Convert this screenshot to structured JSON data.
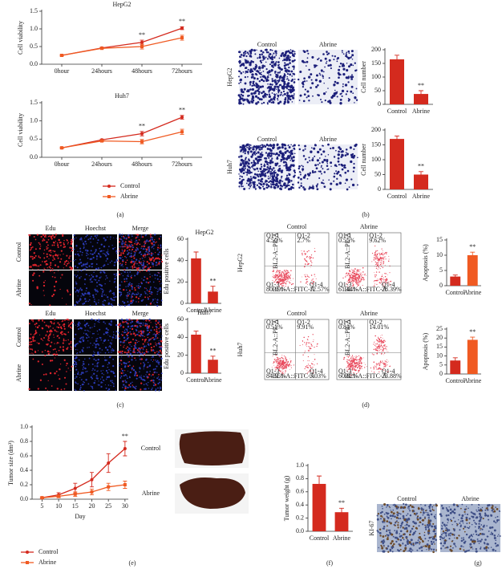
{
  "chart_data": [
    {
      "type": "line",
      "title": "HepG2",
      "y_label": "Cell viability",
      "categories": [
        "0hour",
        "24hours",
        "48hours",
        "72hours"
      ],
      "ylim": [
        0,
        1.5
      ],
      "yticks": [
        {
          "value": 0,
          "label": "0.0"
        },
        0.5,
        {
          "value": 1,
          "label": "1.0"
        },
        1.5
      ],
      "series": [
        {
          "name": "Control",
          "color": "#d42a1e",
          "values": [
            0.25,
            0.46,
            0.62,
            1.02
          ],
          "errors": [
            0.02,
            0.02,
            0.06,
            0.04
          ]
        },
        {
          "name": "Abrine",
          "color": "#f05a22",
          "values": [
            0.25,
            0.45,
            0.5,
            0.75
          ],
          "errors": [
            0.02,
            0.02,
            0.07,
            0.07
          ]
        }
      ],
      "annotations": [
        {
          "text": "**",
          "x": "48hours"
        },
        {
          "text": "**",
          "x": "72hours"
        }
      ]
    },
    {
      "type": "line",
      "title": "Huh7",
      "y_label": "Cell viability",
      "categories": [
        "0hour",
        "24hours",
        "48hours",
        "72hours"
      ],
      "ylim": [
        0,
        1.5
      ],
      "yticks": [
        {
          "value": 0,
          "label": "0.0"
        },
        0.5,
        {
          "value": 1,
          "label": "1.0"
        },
        1.5
      ],
      "legend": true,
      "series": [
        {
          "name": "Control",
          "color": "#d42a1e",
          "values": [
            0.26,
            0.48,
            0.65,
            1.1
          ],
          "errors": [
            0.02,
            0.02,
            0.06,
            0.05
          ]
        },
        {
          "name": "Abrine",
          "color": "#f05a22",
          "values": [
            0.26,
            0.45,
            0.43,
            0.7
          ],
          "errors": [
            0.02,
            0.02,
            0.06,
            0.07
          ]
        }
      ],
      "annotations": [
        {
          "text": "**",
          "x": "48hours"
        },
        {
          "text": "**",
          "x": "72hours"
        }
      ]
    },
    {
      "type": "bar",
      "y_label": "Cell number",
      "categories": [
        "Control",
        "Abrine"
      ],
      "values": [
        165,
        38
      ],
      "errors": [
        15,
        12
      ],
      "colors": [
        "#d42a1e",
        "#d42a1e"
      ],
      "ylim": [
        0,
        200
      ],
      "yticks": [
        0,
        50,
        100,
        150,
        200
      ],
      "annotations": [
        {
          "text": "**",
          "x": "Abrine"
        }
      ]
    },
    {
      "type": "bar",
      "y_label": "Cell number",
      "categories": [
        "Control",
        "Abrine"
      ],
      "values": [
        170,
        50
      ],
      "errors": [
        10,
        10
      ],
      "colors": [
        "#d42a1e",
        "#d42a1e"
      ],
      "ylim": [
        0,
        200
      ],
      "yticks": [
        0,
        50,
        100,
        150,
        200
      ],
      "annotations": [
        {
          "text": "**",
          "x": "Abrine"
        }
      ]
    },
    {
      "type": "bar",
      "title": "HepG2",
      "y_label": "Edu positive cells",
      "categories": [
        "Control",
        "Abrine"
      ],
      "values": [
        42,
        11
      ],
      "errors": [
        6,
        5
      ],
      "colors": [
        "#d42a1e",
        "#d42a1e"
      ],
      "ylim": [
        0,
        60
      ],
      "yticks": [
        0,
        20,
        40,
        60
      ],
      "annotations": [
        {
          "text": "**",
          "x": "Abrine"
        }
      ]
    },
    {
      "type": "bar",
      "title": "Huh7",
      "y_label": "Edu positive cells",
      "categories": [
        "Control",
        "Abrine"
      ],
      "values": [
        43,
        15
      ],
      "errors": [
        4,
        4
      ],
      "colors": [
        "#d42a1e",
        "#d42a1e"
      ],
      "ylim": [
        0,
        60
      ],
      "yticks": [
        0,
        20,
        40,
        60
      ],
      "annotations": [
        {
          "text": "**",
          "x": "Abrine"
        }
      ]
    },
    {
      "type": "bar",
      "y_label": "Apoptosis (%)",
      "categories": [
        "Control",
        "Abrine"
      ],
      "values": [
        3,
        10
      ],
      "errors": [
        0.5,
        1
      ],
      "colors": [
        "#d42a1e",
        "#f05a22"
      ],
      "ylim": [
        0,
        15
      ],
      "yticks": [
        0,
        5,
        10,
        15
      ],
      "annotations": [
        {
          "text": "**",
          "x": "Abrine"
        }
      ]
    },
    {
      "type": "bar",
      "y_label": "Apoptosis (%)",
      "categories": [
        "Control",
        "Abrine"
      ],
      "values": [
        7.5,
        19
      ],
      "errors": [
        1.5,
        1.5
      ],
      "colors": [
        "#d42a1e",
        "#f05a22"
      ],
      "ylim": [
        0,
        25
      ],
      "yticks": [
        0,
        5,
        10,
        15,
        20,
        25
      ],
      "annotations": [
        {
          "text": "**",
          "x": "Abrine"
        }
      ]
    },
    {
      "type": "line",
      "y_label": "Tumor size (dm³)",
      "x_label": "Day",
      "x": [
        5,
        10,
        15,
        20,
        25,
        30
      ],
      "xlim": [
        2,
        31
      ],
      "xticks": [
        5,
        10,
        15,
        20,
        25,
        30
      ],
      "ylim": [
        0,
        1
      ],
      "yticks": [
        {
          "value": 0,
          "label": "0.0"
        },
        0.2,
        0.4,
        0.6,
        0.8,
        {
          "value": 1,
          "label": "1.0"
        }
      ],
      "legend": true,
      "series": [
        {
          "name": "Control",
          "color": "#d42a1e",
          "values": [
            0.02,
            0.06,
            0.15,
            0.27,
            0.5,
            0.7
          ],
          "errors": [
            0.01,
            0.03,
            0.07,
            0.1,
            0.13,
            0.1
          ]
        },
        {
          "name": "Abrine",
          "color": "#f05a22",
          "values": [
            0.02,
            0.04,
            0.07,
            0.1,
            0.17,
            0.2
          ],
          "errors": [
            0.01,
            0.02,
            0.03,
            0.04,
            0.05,
            0.05
          ]
        }
      ],
      "annotations": [
        {
          "text": "**",
          "x": 30
        }
      ]
    },
    {
      "type": "bar",
      "y_label": "Tumor weight (g)",
      "categories": [
        "Control",
        "Abrine"
      ],
      "values": [
        0.72,
        0.29
      ],
      "errors": [
        0.12,
        0.06
      ],
      "colors": [
        "#d42a1e",
        "#d42a1e"
      ],
      "ylim": [
        0,
        1
      ],
      "yticks": [
        {
          "value": 0,
          "label": "0.0"
        },
        0.2,
        0.4,
        0.6,
        0.8,
        {
          "value": 1,
          "label": "1.0"
        }
      ],
      "annotations": [
        {
          "text": "**",
          "x": "Abrine"
        }
      ]
    }
  ],
  "panels": {
    "letters": [
      "(a)",
      "(b)",
      "(c)",
      "(d)",
      "(e)",
      "(f)",
      "(g)"
    ],
    "b": {
      "columns": [
        "Control",
        "Abrine"
      ],
      "rows": [
        "HepG2",
        "Huh7"
      ]
    },
    "c": {
      "columns": [
        "Edu",
        "Hoechst",
        "Merge"
      ],
      "rows": [
        "Control",
        "Abrine"
      ]
    },
    "d": {
      "columns": [
        "Control",
        "Abrine"
      ],
      "rows": [
        "HepG2",
        "Huh7"
      ],
      "y_axis": "BL2-A::PE-A",
      "x_axis": "BL1-A::FITC-A",
      "quadrants": [
        [
          [
            "Q1-1",
            "4.50%"
          ],
          [
            "Q1-2",
            "2.7%"
          ],
          [
            "Q1-3",
            "80.19%"
          ],
          [
            "Q1-4",
            "12.57%"
          ]
        ],
        [
          [
            "Q1-1",
            "0.55%"
          ],
          [
            "Q1-2",
            "9.62%"
          ],
          [
            "Q1-3",
            "61.44%"
          ],
          [
            "Q1-4",
            "28.39%"
          ]
        ],
        [
          [
            "Q1-1",
            "0.51%"
          ],
          [
            "Q1-2",
            "9.91%"
          ],
          [
            "Q1-3",
            "84.55%"
          ],
          [
            "Q1-4",
            "5.03%"
          ]
        ],
        [
          [
            "Q1-1",
            "0.84%"
          ],
          [
            "Q1-2",
            "14.01%"
          ],
          [
            "Q1-3",
            "60.82%"
          ],
          [
            "Q1-4",
            "23.88%"
          ]
        ]
      ]
    },
    "f": {
      "rows": [
        "Control",
        "Abrine"
      ]
    },
    "g": {
      "columns": [
        "Control",
        "Abrine"
      ],
      "row": "KI-67"
    }
  }
}
